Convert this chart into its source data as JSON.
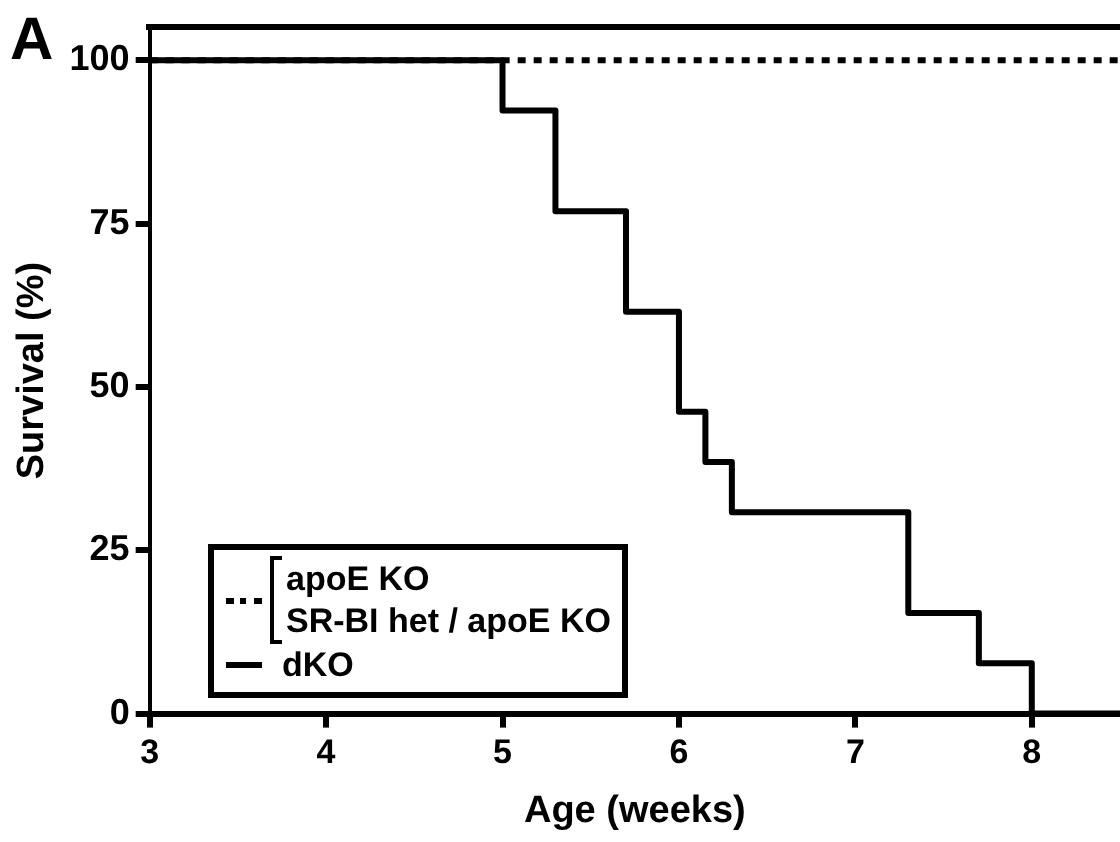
{
  "chart_data": {
    "type": "step",
    "xlabel": "Age (weeks)",
    "ylabel": "Survival (%)",
    "annotations": [
      "A"
    ],
    "xlim": [
      3,
      8.5
    ],
    "xticks": [
      3,
      4,
      5,
      6,
      7,
      8
    ],
    "ylim": [
      0,
      105
    ],
    "yticks": [
      0,
      25,
      50,
      75,
      100
    ],
    "grid": false,
    "legend": "bottom left",
    "marker": "none",
    "series": [
      {
        "name": "apoE KO\nSR-BI het / apoE KO",
        "color": "#000000",
        "line_style": "dotted",
        "x": [
          3,
          8.5
        ],
        "values": [
          100,
          100
        ]
      },
      {
        "name": "dKO",
        "color": "#000000",
        "line_style": "solid",
        "x": [
          3,
          5.0,
          5.3,
          5.7,
          6.0,
          6.15,
          6.3,
          7.3,
          7.7,
          8.0,
          8.5
        ],
        "values": [
          100,
          92.3,
          76.9,
          61.5,
          46.2,
          38.5,
          30.8,
          15.4,
          7.7,
          0,
          0
        ]
      }
    ]
  }
}
